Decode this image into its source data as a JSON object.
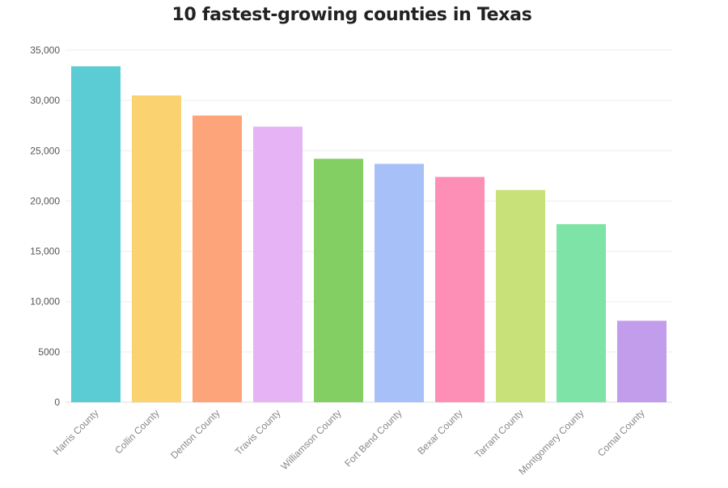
{
  "chart_data": {
    "type": "bar",
    "title": "10 fastest-growing counties in Texas",
    "xlabel": "",
    "ylabel": "",
    "categories": [
      "Harris County",
      "Collin County",
      "Denton County",
      "Travis County",
      "Williamson County",
      "Fort Bend County",
      "Bexar County",
      "Tarrant County",
      "Montgomery County",
      "Comal County"
    ],
    "values": [
      33400,
      30500,
      28500,
      27400,
      24200,
      23700,
      22400,
      21100,
      17700,
      8100
    ],
    "colors": [
      "#5bccd4",
      "#fad26f",
      "#fda47a",
      "#e6b4f5",
      "#83cf63",
      "#a7c0f8",
      "#fd8fb7",
      "#c9e179",
      "#7ee3a6",
      "#c19deb"
    ],
    "ylim": [
      0,
      35000
    ],
    "yticks": [
      0,
      5000,
      10000,
      15000,
      20000,
      25000,
      30000,
      35000
    ],
    "ytick_labels": [
      "0",
      "5000",
      "10,000",
      "15,000",
      "20,000",
      "25,000",
      "30,000",
      "35,000"
    ],
    "grid": true,
    "legend": "none"
  }
}
